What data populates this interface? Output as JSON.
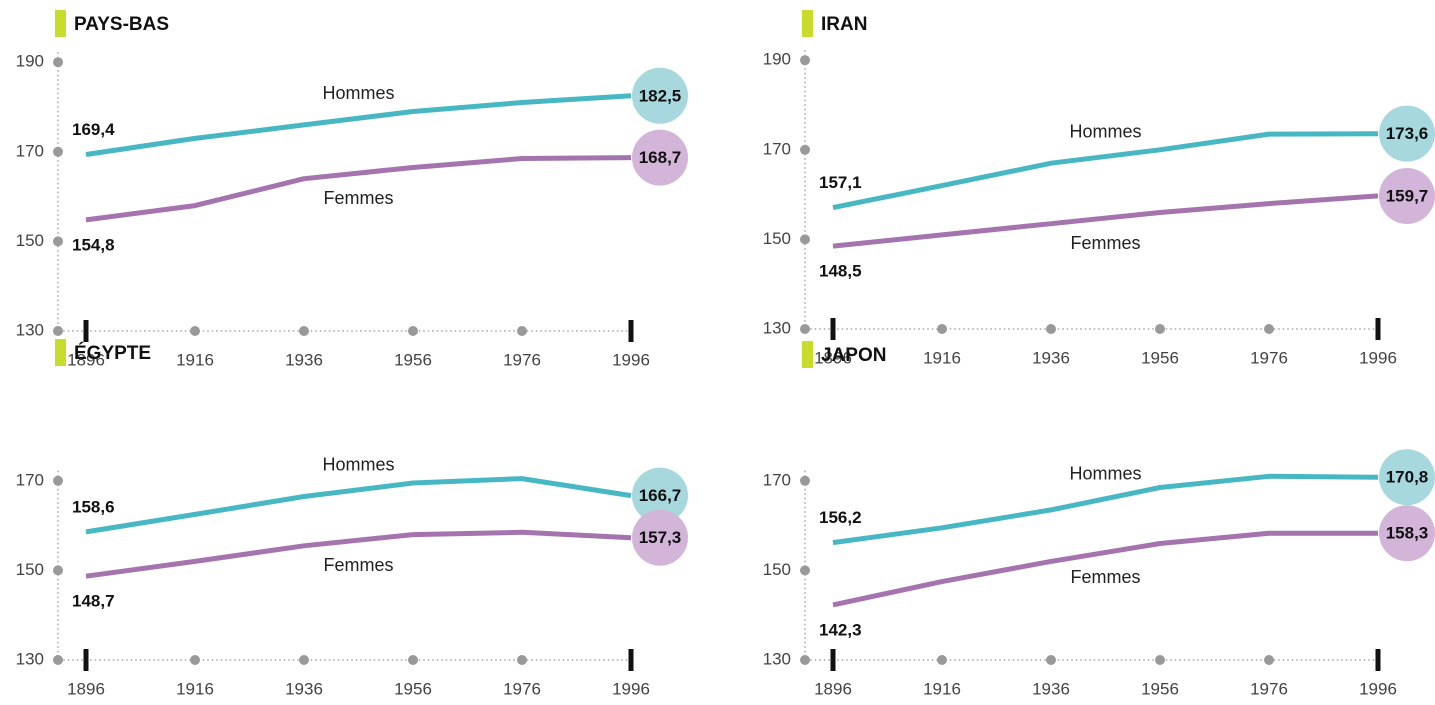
{
  "chart_data": [
    {
      "type": "line",
      "title": "PAYS-BAS",
      "x": [
        1896,
        1916,
        1936,
        1956,
        1976,
        1996
      ],
      "xlim": [
        1891,
        2001
      ],
      "xticks": [
        1896,
        1916,
        1936,
        1956,
        1976,
        1996
      ],
      "ylim": [
        130,
        190
      ],
      "yticks": [
        130,
        150,
        170,
        190
      ],
      "series": [
        {
          "name": "Hommes",
          "color": "#47b8c3",
          "values": [
            169.4,
            173,
            176,
            179,
            181,
            182.5
          ],
          "value_labels": [
            "169,4",
            null,
            null,
            null,
            null,
            "182,5"
          ]
        },
        {
          "name": "Femmes",
          "color": "#a574ae",
          "values": [
            154.8,
            158,
            164,
            166.5,
            168.5,
            168.7
          ],
          "value_labels": [
            "154,8",
            null,
            null,
            null,
            null,
            "168,7"
          ]
        }
      ]
    },
    {
      "type": "line",
      "title": "IRAN",
      "x": [
        1896,
        1916,
        1936,
        1956,
        1976,
        1996
      ],
      "xlim": [
        1891,
        2001
      ],
      "xticks": [
        1896,
        1916,
        1936,
        1956,
        1976,
        1996
      ],
      "ylim": [
        130,
        190
      ],
      "yticks": [
        130,
        150,
        170,
        190
      ],
      "series": [
        {
          "name": "Hommes",
          "color": "#47b8c3",
          "values": [
            157.1,
            162,
            167,
            170,
            173.5,
            173.6
          ],
          "value_labels": [
            "157,1",
            null,
            null,
            null,
            null,
            "173,6"
          ]
        },
        {
          "name": "Femmes",
          "color": "#a574ae",
          "values": [
            148.5,
            151,
            153.5,
            156,
            158,
            159.7
          ],
          "value_labels": [
            "148,5",
            null,
            null,
            null,
            null,
            "159,7"
          ]
        }
      ]
    },
    {
      "type": "line",
      "title": "ÉGYPTE",
      "x": [
        1896,
        1916,
        1936,
        1956,
        1976,
        1996
      ],
      "xlim": [
        1891,
        2001
      ],
      "xticks": [
        1896,
        1916,
        1936,
        1956,
        1976,
        1996
      ],
      "ylim": [
        130,
        170
      ],
      "yticks": [
        130,
        150,
        170
      ],
      "series": [
        {
          "name": "Hommes",
          "color": "#47b8c3",
          "values": [
            158.6,
            162.5,
            166.5,
            169.5,
            170.5,
            166.7
          ],
          "value_labels": [
            "158,6",
            null,
            null,
            null,
            null,
            "166,7"
          ]
        },
        {
          "name": "Femmes",
          "color": "#a574ae",
          "values": [
            148.7,
            152,
            155.5,
            158,
            158.5,
            157.3
          ],
          "value_labels": [
            "148,7",
            null,
            null,
            null,
            null,
            "157,3"
          ]
        }
      ]
    },
    {
      "type": "line",
      "title": "JAPON",
      "x": [
        1896,
        1916,
        1936,
        1956,
        1976,
        1996
      ],
      "xlim": [
        1891,
        2001
      ],
      "xticks": [
        1896,
        1916,
        1936,
        1956,
        1976,
        1996
      ],
      "ylim": [
        130,
        170
      ],
      "yticks": [
        130,
        150,
        170
      ],
      "series": [
        {
          "name": "Hommes",
          "color": "#47b8c3",
          "values": [
            156.2,
            159.5,
            163.5,
            168.5,
            171,
            170.8
          ],
          "value_labels": [
            "156,2",
            null,
            null,
            null,
            null,
            "170,8"
          ]
        },
        {
          "name": "Femmes",
          "color": "#a574ae",
          "values": [
            142.3,
            147.5,
            152,
            156,
            158.3,
            158.3
          ],
          "value_labels": [
            "142,3",
            null,
            null,
            null,
            null,
            "158,3"
          ]
        }
      ]
    }
  ]
}
